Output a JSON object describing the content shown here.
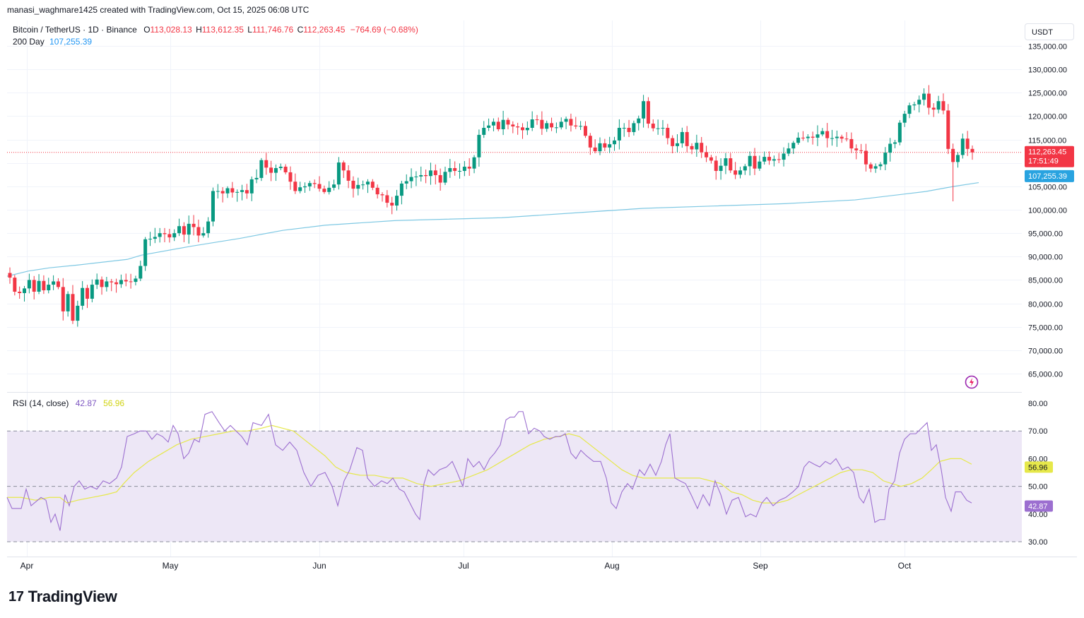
{
  "header": {
    "credit": "manasi_waghmare1425 created with TradingView.com, Oct 15, 2025 06:08 UTC"
  },
  "legend": {
    "symbol": "Bitcoin / TetherUS · 1D · Binance",
    "open_label": "O",
    "open": "113,028.13",
    "high_label": "H",
    "high": "113,612.35",
    "low_label": "L",
    "low": "111,746.76",
    "close_label": "C",
    "close": "112,263.45",
    "change": "−764.69 (−0.68%)",
    "ma_label": "200 Day",
    "ma_value": "107,255.39",
    "rsi_label": "RSI (14, close)",
    "rsi_value": "42.87",
    "rsi_ma_value": "56.96"
  },
  "currency_label": "USDT",
  "logo_text": "TradingView",
  "logo_mark": "17",
  "colors": {
    "up": "#089981",
    "down": "#f23645",
    "ma": "#7ec8e3",
    "rsi": "#9c6fd0",
    "rsi_ma": "#e6e84a",
    "rsi_band": "#ede7f6"
  },
  "chart_data": [
    {
      "type": "candlestick",
      "title": "Bitcoin / TetherUS · 1D · Binance",
      "x_labels": [
        "Apr",
        "May",
        "Jun",
        "Jul",
        "Aug",
        "Sep",
        "Oct"
      ],
      "y_ticks": [
        65000,
        70000,
        75000,
        80000,
        85000,
        90000,
        95000,
        100000,
        105000,
        110000,
        115000,
        120000,
        125000,
        130000,
        135000
      ],
      "y_tick_labels": [
        "65,000.00",
        "70,000.00",
        "75,000.00",
        "80,000.00",
        "85,000.00",
        "90,000.00",
        "95,000.00",
        "100,000.00",
        "105,000.00",
        "110,000.00",
        "115,000.00",
        "120,000.00",
        "125,000.00",
        "130,000.00",
        "135,000.00"
      ],
      "ylim": [
        62000,
        137500
      ],
      "last_price_label": "112,263.45",
      "countdown_label": "17:51:49",
      "ma_price_label": "107,255.39",
      "close_series": [
        85500,
        82500,
        82200,
        83200,
        85000,
        82500,
        84800,
        82800,
        84000,
        84700,
        83500,
        78300,
        82000,
        76300,
        79500,
        83300,
        81000,
        84000,
        85100,
        83500,
        84700,
        84500,
        84100,
        85000,
        84700,
        84600,
        85300,
        88000,
        93700,
        93800,
        94200,
        95000,
        94800,
        94100,
        95000,
        96500,
        94700,
        97000,
        96300,
        94500,
        95000,
        97500,
        104000,
        104000,
        103500,
        104600,
        103700,
        103800,
        104200,
        103500,
        106500,
        106800,
        110600,
        109000,
        107900,
        108900,
        109200,
        108000,
        106000,
        104000,
        104800,
        105000,
        105700,
        105500,
        104500,
        103800,
        104700,
        105400,
        110100,
        108400,
        106200,
        104500,
        105300,
        105400,
        106000,
        104700,
        103300,
        103100,
        101500,
        100900,
        103000,
        105600,
        106100,
        107000,
        107100,
        107400,
        107200,
        108400,
        107400,
        105800,
        108100,
        108900,
        108300,
        108300,
        109200,
        108800,
        111200,
        116000,
        117500,
        118000,
        118800,
        117200,
        119200,
        118200,
        117800,
        117600,
        117000,
        117500,
        119300,
        119200,
        117300,
        118500,
        117600,
        117600,
        118800,
        119400,
        118000,
        117800,
        117900,
        115800,
        113300,
        112500,
        114200,
        113300,
        114000,
        114800,
        117500,
        117500,
        116600,
        118500,
        119500,
        123200,
        118400,
        117400,
        117400,
        117500,
        115300,
        113600,
        114200,
        116600,
        113600,
        112900,
        114300,
        112300,
        111200,
        110500,
        108300,
        109400,
        111000,
        108400,
        107500,
        108400,
        109300,
        111500,
        108800,
        110300,
        111300,
        110500,
        110800,
        110700,
        112000,
        113100,
        114300,
        115400,
        115300,
        115600,
        115400,
        116100,
        116800,
        115300,
        115300,
        115600,
        115200,
        115100,
        113100,
        112700,
        112600,
        109700,
        108800,
        109300,
        109700,
        112200,
        114100,
        114400,
        118600,
        120500,
        122300,
        122500,
        123500,
        124800,
        121800,
        121400,
        123200,
        121200,
        113000,
        110200,
        111700,
        115200,
        113000,
        112263
      ]
    },
    {
      "type": "line",
      "name": "200 Day",
      "points": [
        [
          0,
          85800
        ],
        [
          30,
          86900
        ],
        [
          60,
          87600
        ],
        [
          100,
          88200
        ],
        [
          170,
          89400
        ],
        [
          190,
          90300
        ],
        [
          260,
          92200
        ],
        [
          330,
          93900
        ],
        [
          390,
          95600
        ],
        [
          450,
          96700
        ],
        [
          550,
          97700
        ],
        [
          700,
          98300
        ],
        [
          800,
          99300
        ],
        [
          900,
          100300
        ],
        [
          1000,
          100800
        ],
        [
          1100,
          101300
        ],
        [
          1200,
          102100
        ],
        [
          1300,
          103900
        ],
        [
          1340,
          105000
        ],
        [
          1375,
          105800
        ]
      ]
    },
    {
      "type": "line",
      "name": "RSI (14, close)",
      "x_labels": [
        "Apr",
        "May",
        "Jun",
        "Jul",
        "Aug",
        "Sep",
        "Oct"
      ],
      "y_ticks": [
        30,
        40,
        50,
        60,
        70,
        80
      ],
      "y_tick_labels": [
        "30.00",
        "40.00",
        "50.00",
        "60.00",
        "70.00",
        "80.00"
      ],
      "ylim": [
        25.5,
        82.5
      ],
      "band": [
        30,
        70
      ],
      "middle_line": 50,
      "rsi_label_value": "42.87",
      "rsi_ma_label_value": "56.96",
      "rsi": [
        [
          10,
          46
        ],
        [
          17,
          42
        ],
        [
          30,
          42
        ],
        [
          37,
          49
        ],
        [
          44,
          43
        ],
        [
          58,
          46
        ],
        [
          65,
          45
        ],
        [
          72,
          37
        ],
        [
          78,
          40
        ],
        [
          85,
          34
        ],
        [
          92,
          47
        ],
        [
          98,
          43
        ],
        [
          105,
          50
        ],
        [
          112,
          52
        ],
        [
          120,
          49
        ],
        [
          128,
          50
        ],
        [
          137,
          49
        ],
        [
          146,
          52
        ],
        [
          155,
          51
        ],
        [
          165,
          53
        ],
        [
          172,
          57
        ],
        [
          180,
          68
        ],
        [
          190,
          69
        ],
        [
          198,
          70
        ],
        [
          207,
          70
        ],
        [
          215,
          67
        ],
        [
          222,
          69
        ],
        [
          230,
          68
        ],
        [
          238,
          66
        ],
        [
          245,
          72
        ],
        [
          252,
          69
        ],
        [
          260,
          60
        ],
        [
          267,
          62
        ],
        [
          275,
          67
        ],
        [
          282,
          66
        ],
        [
          290,
          76
        ],
        [
          300,
          77
        ],
        [
          310,
          73
        ],
        [
          318,
          70
        ],
        [
          326,
          72
        ],
        [
          334,
          70
        ],
        [
          342,
          68
        ],
        [
          350,
          65
        ],
        [
          358,
          73
        ],
        [
          370,
          72
        ],
        [
          380,
          76
        ],
        [
          390,
          65
        ],
        [
          400,
          63
        ],
        [
          410,
          66
        ],
        [
          420,
          63
        ],
        [
          430,
          55
        ],
        [
          440,
          50
        ],
        [
          450,
          54
        ],
        [
          460,
          55
        ],
        [
          470,
          50
        ],
        [
          478,
          43
        ],
        [
          487,
          52
        ],
        [
          495,
          56
        ],
        [
          505,
          64
        ],
        [
          513,
          63
        ],
        [
          520,
          53
        ],
        [
          530,
          50
        ],
        [
          540,
          52
        ],
        [
          548,
          51
        ],
        [
          556,
          53
        ],
        [
          565,
          49
        ],
        [
          572,
          48
        ],
        [
          580,
          44
        ],
        [
          588,
          40
        ],
        [
          594,
          38
        ],
        [
          600,
          51
        ],
        [
          606,
          56
        ],
        [
          614,
          54
        ],
        [
          622,
          56
        ],
        [
          632,
          57
        ],
        [
          640,
          59
        ],
        [
          647,
          55
        ],
        [
          655,
          50
        ],
        [
          662,
          60
        ],
        [
          670,
          57
        ],
        [
          678,
          59
        ],
        [
          685,
          56
        ],
        [
          693,
          60
        ],
        [
          700,
          62
        ],
        [
          708,
          65
        ],
        [
          716,
          74
        ],
        [
          722,
          75
        ],
        [
          728,
          75
        ],
        [
          734,
          77
        ],
        [
          740,
          77
        ],
        [
          748,
          69
        ],
        [
          756,
          71
        ],
        [
          764,
          70
        ],
        [
          770,
          68
        ],
        [
          778,
          67
        ],
        [
          786,
          68
        ],
        [
          793,
          68
        ],
        [
          800,
          69
        ],
        [
          808,
          62
        ],
        [
          815,
          60
        ],
        [
          822,
          63
        ],
        [
          830,
          61
        ],
        [
          840,
          59
        ],
        [
          850,
          59
        ],
        [
          858,
          53
        ],
        [
          865,
          44
        ],
        [
          872,
          42
        ],
        [
          880,
          48
        ],
        [
          888,
          51
        ],
        [
          895,
          49
        ],
        [
          905,
          56
        ],
        [
          912,
          54
        ],
        [
          920,
          58
        ],
        [
          928,
          54
        ],
        [
          936,
          59
        ],
        [
          942,
          65
        ],
        [
          948,
          69
        ],
        [
          955,
          53
        ],
        [
          962,
          52
        ],
        [
          970,
          51
        ],
        [
          978,
          47
        ],
        [
          987,
          42
        ],
        [
          995,
          47
        ],
        [
          1004,
          43
        ],
        [
          1012,
          52
        ],
        [
          1020,
          47
        ],
        [
          1028,
          40
        ],
        [
          1036,
          45
        ],
        [
          1045,
          46
        ],
        [
          1055,
          39
        ],
        [
          1062,
          40
        ],
        [
          1070,
          39
        ],
        [
          1078,
          44
        ],
        [
          1085,
          46
        ],
        [
          1094,
          43
        ],
        [
          1103,
          45
        ],
        [
          1112,
          46
        ],
        [
          1122,
          48
        ],
        [
          1130,
          50
        ],
        [
          1138,
          57
        ],
        [
          1145,
          59
        ],
        [
          1152,
          58
        ],
        [
          1160,
          57
        ],
        [
          1168,
          59
        ],
        [
          1175,
          58
        ],
        [
          1183,
          60
        ],
        [
          1192,
          56
        ],
        [
          1200,
          57
        ],
        [
          1208,
          55
        ],
        [
          1216,
          46
        ],
        [
          1222,
          44
        ],
        [
          1230,
          49
        ],
        [
          1238,
          37
        ],
        [
          1245,
          38
        ],
        [
          1252,
          38
        ],
        [
          1258,
          49
        ],
        [
          1266,
          52
        ],
        [
          1273,
          62
        ],
        [
          1280,
          67
        ],
        [
          1288,
          69
        ],
        [
          1296,
          69
        ],
        [
          1304,
          71
        ],
        [
          1312,
          73
        ],
        [
          1318,
          63
        ],
        [
          1325,
          65
        ],
        [
          1332,
          56
        ],
        [
          1338,
          46
        ],
        [
          1346,
          41
        ],
        [
          1352,
          48
        ],
        [
          1360,
          48
        ],
        [
          1368,
          45
        ],
        [
          1375,
          44
        ]
      ],
      "rsi_ma": [
        [
          10,
          46
        ],
        [
          30,
          46
        ],
        [
          50,
          45
        ],
        [
          70,
          46
        ],
        [
          85,
          46
        ],
        [
          95,
          44
        ],
        [
          110,
          45
        ],
        [
          130,
          46
        ],
        [
          150,
          47
        ],
        [
          165,
          48
        ],
        [
          175,
          51
        ],
        [
          190,
          55
        ],
        [
          210,
          59
        ],
        [
          230,
          62
        ],
        [
          250,
          65
        ],
        [
          270,
          67
        ],
        [
          290,
          68
        ],
        [
          310,
          69
        ],
        [
          330,
          70
        ],
        [
          350,
          70
        ],
        [
          370,
          71
        ],
        [
          385,
          72
        ],
        [
          400,
          71
        ],
        [
          415,
          70
        ],
        [
          430,
          67
        ],
        [
          445,
          64
        ],
        [
          460,
          61
        ],
        [
          475,
          57
        ],
        [
          490,
          55
        ],
        [
          510,
          54
        ],
        [
          530,
          54
        ],
        [
          550,
          53
        ],
        [
          570,
          53
        ],
        [
          590,
          51
        ],
        [
          610,
          50
        ],
        [
          630,
          51
        ],
        [
          650,
          52
        ],
        [
          670,
          54
        ],
        [
          690,
          56
        ],
        [
          710,
          59
        ],
        [
          730,
          62
        ],
        [
          750,
          65
        ],
        [
          770,
          67
        ],
        [
          790,
          68
        ],
        [
          805,
          69
        ],
        [
          820,
          68
        ],
        [
          835,
          65
        ],
        [
          850,
          62
        ],
        [
          865,
          59
        ],
        [
          880,
          56
        ],
        [
          895,
          54
        ],
        [
          910,
          53
        ],
        [
          930,
          53
        ],
        [
          950,
          53
        ],
        [
          970,
          53
        ],
        [
          990,
          53
        ],
        [
          1005,
          52
        ],
        [
          1020,
          51
        ],
        [
          1035,
          48
        ],
        [
          1050,
          47
        ],
        [
          1065,
          45
        ],
        [
          1080,
          44
        ],
        [
          1100,
          44
        ],
        [
          1115,
          45
        ],
        [
          1130,
          47
        ],
        [
          1145,
          49
        ],
        [
          1160,
          51
        ],
        [
          1175,
          53
        ],
        [
          1190,
          55
        ],
        [
          1205,
          56
        ],
        [
          1220,
          56
        ],
        [
          1235,
          55
        ],
        [
          1250,
          52
        ],
        [
          1262,
          51
        ],
        [
          1275,
          50
        ],
        [
          1290,
          51
        ],
        [
          1305,
          53
        ],
        [
          1318,
          56
        ],
        [
          1330,
          59
        ],
        [
          1345,
          60
        ],
        [
          1360,
          60
        ],
        [
          1375,
          58
        ]
      ]
    }
  ]
}
